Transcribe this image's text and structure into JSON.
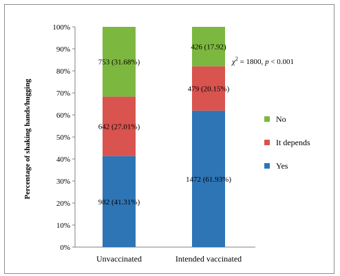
{
  "chart_data": {
    "type": "bar",
    "stacked": true,
    "percent": true,
    "categories": [
      "Unvaccinated",
      "Intended vaccinated"
    ],
    "series": [
      {
        "name": "Yes",
        "color": "#2e75b6",
        "values": [
          41.31,
          61.93
        ],
        "labels": [
          "982 (41.31%)",
          "1472 (61.93%)"
        ]
      },
      {
        "name": "It depends",
        "color": "#d9534f",
        "values": [
          27.01,
          20.15
        ],
        "labels": [
          "642 (27.01%)",
          "479 (20.15%)"
        ]
      },
      {
        "name": "No",
        "color": "#7cb83f",
        "values": [
          31.68,
          17.92
        ],
        "labels": [
          "753 (31.68%)",
          "426 (17.92)"
        ]
      }
    ],
    "ylabel": "Percentage of shaking hands/hugging",
    "ylim": [
      0,
      100
    ],
    "yticks": [
      "0%",
      "10%",
      "20%",
      "30%",
      "40%",
      "50%",
      "60%",
      "70%",
      "80%",
      "90%",
      "100%"
    ],
    "grid": false,
    "legend_order": [
      "No",
      "It depends",
      "Yes"
    ],
    "legend_position": "right",
    "annotation": {
      "chi": "χ",
      "sup": "2",
      "stat": " = 1800, ",
      "p": "p",
      "pval": " < 0.001"
    }
  }
}
